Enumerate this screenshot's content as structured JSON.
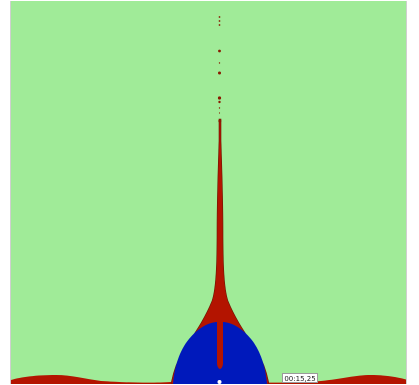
{
  "simulation": {
    "colors": {
      "background": "#a0eb98",
      "red_fluid": "#b31400",
      "blue_fluid": "#0019bb",
      "outline": "#6a1600",
      "interface_point": "#ffffff"
    },
    "time_readout": "00:15,25"
  }
}
